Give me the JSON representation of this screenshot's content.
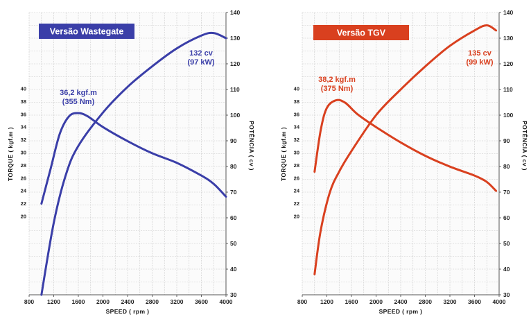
{
  "chart_data": [
    {
      "type": "line",
      "title": "Versão Wastegate",
      "title_bg": "#3a3ea8",
      "line_color": "#3a3ea8",
      "xlabel": "SPEED ( rpm )",
      "ylabel_left": "TORQUE ( kgf.m )",
      "ylabel_right": "POTÊNCIA ( cv )",
      "xlim": [
        800,
        4000
      ],
      "x_ticks": [
        "800",
        "1200",
        "1600",
        "2000",
        "2400",
        "2800",
        "3200",
        "3600",
        "4000"
      ],
      "ylim_left": [
        10,
        40
      ],
      "y_ticks_left": [
        "20",
        "22",
        "24",
        "26",
        "28",
        "30",
        "32",
        "34",
        "36",
        "38",
        "40"
      ],
      "ylim_right": [
        30,
        140
      ],
      "y_ticks_right": [
        "30",
        "40",
        "50",
        "60",
        "70",
        "80",
        "90",
        "100",
        "110",
        "120",
        "130",
        "140"
      ],
      "series": [
        {
          "axis": "left",
          "points": [
            [
              1000,
              22.0
            ],
            [
              1150,
              27.5
            ],
            [
              1300,
              33.0
            ],
            [
              1450,
              35.7
            ],
            [
              1600,
              36.2
            ],
            [
              1750,
              35.7
            ],
            [
              2000,
              34.0
            ],
            [
              2400,
              31.8
            ],
            [
              2800,
              29.9
            ],
            [
              3200,
              28.4
            ],
            [
              3600,
              26.4
            ],
            [
              3800,
              25.1
            ],
            [
              4000,
              23.1
            ]
          ],
          "annotation": [
            "36,2 kgf.m",
            "(355 Nm)"
          ]
        },
        {
          "axis": "right",
          "points": [
            [
              1000,
              30
            ],
            [
              1200,
              58
            ],
            [
              1400,
              77
            ],
            [
              1600,
              88
            ],
            [
              2000,
              101
            ],
            [
              2400,
              111
            ],
            [
              2800,
              119
            ],
            [
              3200,
              126
            ],
            [
              3600,
              131
            ],
            [
              3800,
              132
            ],
            [
              4000,
              130
            ]
          ],
          "annotation": [
            "132 cv",
            "(97 kW)"
          ]
        }
      ]
    },
    {
      "type": "line",
      "title": "Versão TGV",
      "title_bg": "#d9401f",
      "line_color": "#d9401f",
      "xlabel": "SPEED ( rpm )",
      "ylabel_left": "TORQUE ( kgf.m )",
      "ylabel_right": "POTÊNCIA ( cv )",
      "xlim": [
        800,
        4000
      ],
      "x_ticks": [
        "800",
        "1200",
        "1600",
        "2000",
        "2400",
        "2800",
        "3200",
        "3600",
        "4000"
      ],
      "ylim_left": [
        10,
        40
      ],
      "y_ticks_left": [
        "20",
        "22",
        "24",
        "26",
        "28",
        "30",
        "32",
        "34",
        "36",
        "38",
        "40"
      ],
      "ylim_right": [
        30,
        140
      ],
      "y_ticks_right": [
        "30",
        "40",
        "50",
        "60",
        "70",
        "80",
        "90",
        "100",
        "110",
        "120",
        "130",
        "140"
      ],
      "series": [
        {
          "axis": "left",
          "points": [
            [
              1000,
              27.0
            ],
            [
              1100,
              33.5
            ],
            [
              1200,
              37.0
            ],
            [
              1350,
              38.2
            ],
            [
              1500,
              37.8
            ],
            [
              1700,
              36.0
            ],
            [
              2000,
              34.0
            ],
            [
              2400,
              31.6
            ],
            [
              2800,
              29.5
            ],
            [
              3200,
              27.8
            ],
            [
              3600,
              26.4
            ],
            [
              3800,
              25.4
            ],
            [
              3950,
              24.0
            ]
          ],
          "annotation": [
            "38,2 kgf.m",
            "(375 Nm)"
          ]
        },
        {
          "axis": "right",
          "points": [
            [
              1000,
              38
            ],
            [
              1100,
              55
            ],
            [
              1250,
              70
            ],
            [
              1400,
              78
            ],
            [
              1600,
              86
            ],
            [
              2000,
              100
            ],
            [
              2400,
              110
            ],
            [
              2800,
              119
            ],
            [
              3200,
              127
            ],
            [
              3600,
              133
            ],
            [
              3800,
              135
            ],
            [
              3950,
              133
            ]
          ],
          "annotation": [
            "135 cv",
            "(99 kW)"
          ]
        }
      ]
    }
  ]
}
